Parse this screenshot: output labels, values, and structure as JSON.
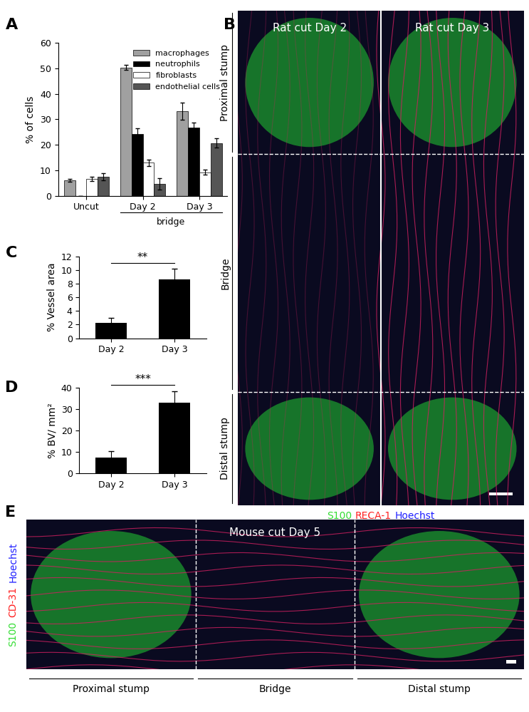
{
  "chart_data": [
    {
      "type": "bar",
      "title": "A",
      "categories": [
        "Uncut",
        "Day 2",
        "Day 3"
      ],
      "ylabel": "% of cells",
      "ylim": [
        0,
        60
      ],
      "yticks": [
        0,
        10,
        20,
        30,
        40,
        50,
        60
      ],
      "legend": "upper right",
      "series": [
        {
          "name": "macrophages",
          "color": "#a0a0a0",
          "values": [
            6.1,
            50.3,
            33.2
          ],
          "errors": [
            0.5,
            0.9,
            3.3
          ]
        },
        {
          "name": "neutrophils",
          "color": "#000000",
          "values": [
            0,
            24.3,
            26.7
          ],
          "errors": [
            0,
            2.3,
            2.0
          ]
        },
        {
          "name": "fibroblasts",
          "color": "#ffffff",
          "values": [
            6.7,
            13,
            9.2
          ],
          "errors": [
            0.8,
            1.3,
            1.0
          ]
        },
        {
          "name": "endothelial cells",
          "color": "#555555",
          "values": [
            7.5,
            4.7,
            20.7
          ],
          "errors": [
            1.4,
            2.2,
            1.8
          ]
        }
      ],
      "annotations": [
        {
          "text": "bridge",
          "categories": [
            "Day 2",
            "Day 3"
          ]
        }
      ]
    },
    {
      "type": "bar",
      "title": "C",
      "categories": [
        "Day 2",
        "Day 3"
      ],
      "ylabel": "% Vessel area",
      "ylim": [
        0,
        12
      ],
      "yticks": [
        0,
        2,
        4,
        6,
        8,
        10,
        12
      ],
      "color": "#000000",
      "values": [
        2.2,
        8.6
      ],
      "errors": [
        0.8,
        1.6
      ],
      "annotations": [
        {
          "text": "**",
          "categories": [
            "Day 2",
            "Day 3"
          ]
        }
      ]
    },
    {
      "type": "bar",
      "title": "D",
      "categories": [
        "Day 2",
        "Day 3"
      ],
      "ylabel": "% BV/ mm²",
      "ylim": [
        0,
        40
      ],
      "yticks": [
        0,
        10,
        20,
        30,
        40
      ],
      "color": "#000000",
      "values": [
        7.5,
        33
      ],
      "errors": [
        3,
        5.5
      ],
      "annotations": [
        {
          "text": "***",
          "categories": [
            "Day 2",
            "Day 3"
          ]
        }
      ]
    }
  ],
  "images": [
    {
      "label": "B",
      "columns": [
        "Rat cut Day 2",
        "Rat cut Day 3"
      ],
      "sections": [
        "Proximal stump",
        "Bridge",
        "Distal stump"
      ],
      "stains": [
        {
          "text": "S100",
          "color": "#33dd33"
        },
        {
          "text": "RECA-1",
          "color": "#ff2020"
        },
        {
          "text": "Hoechst",
          "color": "#2020ff"
        }
      ]
    },
    {
      "label": "E",
      "columns": [
        "Mouse cut Day 5"
      ],
      "sections": [
        "Proximal stump",
        "Bridge",
        "Distal stump"
      ],
      "stains": [
        {
          "text": "S100",
          "color": "#33dd33"
        },
        {
          "text": "CD-31",
          "color": "#ff2020"
        },
        {
          "text": "Hoechst",
          "color": "#2020ff"
        }
      ]
    }
  ]
}
